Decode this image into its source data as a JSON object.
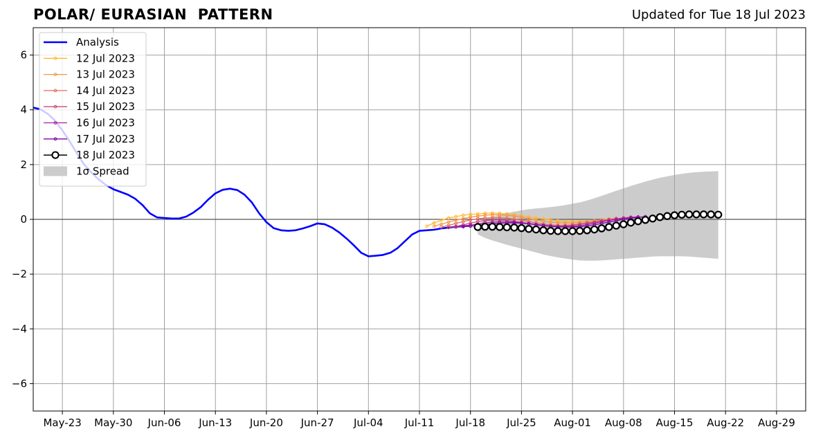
{
  "chart_data": {
    "type": "line",
    "title": "POLAR/ EURASIAN  PATTERN",
    "subtitle": "Updated for Tue 18 Jul 2023",
    "xlabel": "",
    "ylabel": "",
    "x_range": [
      "2023-05-19",
      "2023-09-02"
    ],
    "ylim": [
      -7,
      7
    ],
    "yticks": [
      -6,
      -4,
      -2,
      0,
      2,
      4,
      6
    ],
    "ytick_labels": [
      "−6",
      "−4",
      "−2",
      "0",
      "2",
      "4",
      "6"
    ],
    "xticks": [
      "2023-05-23",
      "2023-05-30",
      "2023-06-06",
      "2023-06-13",
      "2023-06-20",
      "2023-06-27",
      "2023-07-04",
      "2023-07-11",
      "2023-07-18",
      "2023-07-25",
      "2023-08-01",
      "2023-08-08",
      "2023-08-15",
      "2023-08-22",
      "2023-08-29"
    ],
    "xtick_labels": [
      "May-23",
      "May-30",
      "Jun-06",
      "Jun-13",
      "Jun-20",
      "Jun-27",
      "Jul-04",
      "Jul-11",
      "Jul-18",
      "Jul-25",
      "Aug-01",
      "Aug-08",
      "Aug-15",
      "Aug-22",
      "Aug-29"
    ],
    "grid": true,
    "zero_line": true,
    "legend_position": "top-left",
    "colors": {
      "analysis": "#0000ff",
      "12 Jul 2023": "#ffb931",
      "13 Jul 2023": "#f89441",
      "14 Jul 2023": "#e56b5d",
      "15 Jul 2023": "#cb4778",
      "16 Jul 2023": "#a72197",
      "17 Jul 2023": "#7e03a8",
      "18 Jul 2023": "#000000",
      "spread": "#cccccc",
      "grid": "#a0a0a0"
    },
    "series": [
      {
        "name": "Analysis",
        "kind": "analysis",
        "start": "2023-05-19",
        "values": [
          4.08,
          4.02,
          3.85,
          3.6,
          3.25,
          2.85,
          2.4,
          2.0,
          1.7,
          1.45,
          1.25,
          1.1,
          1.0,
          0.9,
          0.75,
          0.52,
          0.22,
          0.07,
          0.05,
          0.03,
          0.03,
          0.1,
          0.25,
          0.45,
          0.72,
          0.95,
          1.08,
          1.12,
          1.07,
          0.9,
          0.62,
          0.22,
          -0.1,
          -0.32,
          -0.4,
          -0.42,
          -0.4,
          -0.33,
          -0.25,
          -0.15,
          -0.18,
          -0.3,
          -0.48,
          -0.7,
          -0.95,
          -1.22,
          -1.35,
          -1.33,
          -1.3,
          -1.22,
          -1.05,
          -0.8,
          -0.55,
          -0.42,
          -0.4,
          -0.38,
          -0.33,
          -0.3,
          -0.27,
          -0.25,
          -0.23
        ]
      },
      {
        "name": "12 Jul 2023",
        "kind": "forecast",
        "start": "2023-07-12",
        "values": [
          -0.25,
          -0.13,
          -0.03,
          0.05,
          0.1,
          0.15,
          0.18,
          0.2,
          0.22,
          0.23,
          0.22,
          0.2,
          0.17,
          0.13,
          0.09,
          0.05,
          0.02,
          -0.02,
          -0.05,
          -0.07,
          -0.08,
          -0.08,
          -0.07,
          -0.05,
          -0.02,
          0.0,
          0.03
        ]
      },
      {
        "name": "13 Jul 2023",
        "kind": "forecast",
        "start": "2023-07-13",
        "values": [
          -0.25,
          -0.18,
          -0.1,
          -0.03,
          0.03,
          0.08,
          0.12,
          0.15,
          0.17,
          0.17,
          0.15,
          0.12,
          0.08,
          0.03,
          -0.02,
          -0.07,
          -0.1,
          -0.12,
          -0.13,
          -0.13,
          -0.11,
          -0.08,
          -0.05,
          -0.02,
          0.01,
          0.04
        ]
      },
      {
        "name": "14 Jul 2023",
        "kind": "forecast",
        "start": "2023-07-14",
        "values": [
          -0.28,
          -0.22,
          -0.15,
          -0.08,
          -0.02,
          0.02,
          0.05,
          0.06,
          0.06,
          0.04,
          0.01,
          -0.03,
          -0.08,
          -0.13,
          -0.17,
          -0.2,
          -0.22,
          -0.22,
          -0.2,
          -0.17,
          -0.13,
          -0.09,
          -0.05,
          -0.01,
          0.02,
          0.05
        ]
      },
      {
        "name": "15 Jul 2023",
        "kind": "forecast",
        "start": "2023-07-15",
        "values": [
          -0.3,
          -0.26,
          -0.2,
          -0.14,
          -0.08,
          -0.04,
          -0.02,
          -0.02,
          -0.04,
          -0.07,
          -0.11,
          -0.15,
          -0.19,
          -0.22,
          -0.24,
          -0.25,
          -0.24,
          -0.22,
          -0.18,
          -0.14,
          -0.1,
          -0.06,
          -0.02,
          0.02,
          0.05,
          0.08
        ]
      },
      {
        "name": "16 Jul 2023",
        "kind": "forecast",
        "start": "2023-07-16",
        "values": [
          -0.28,
          -0.25,
          -0.21,
          -0.17,
          -0.13,
          -0.1,
          -0.09,
          -0.09,
          -0.1,
          -0.13,
          -0.16,
          -0.2,
          -0.23,
          -0.26,
          -0.27,
          -0.27,
          -0.26,
          -0.23,
          -0.19,
          -0.14,
          -0.09,
          -0.04,
          0.0,
          0.04,
          0.07,
          0.09
        ]
      },
      {
        "name": "17 Jul 2023",
        "kind": "forecast",
        "start": "2023-07-17",
        "values": [
          -0.27,
          -0.25,
          -0.22,
          -0.19,
          -0.16,
          -0.14,
          -0.13,
          -0.13,
          -0.14,
          -0.16,
          -0.19,
          -0.22,
          -0.25,
          -0.27,
          -0.28,
          -0.28,
          -0.27,
          -0.24,
          -0.2,
          -0.15,
          -0.1,
          -0.05,
          0.0,
          0.04,
          0.07,
          0.1
        ]
      },
      {
        "name": "18 Jul 2023",
        "kind": "current",
        "start": "2023-07-19",
        "values": [
          -0.28,
          -0.27,
          -0.27,
          -0.28,
          -0.29,
          -0.3,
          -0.32,
          -0.35,
          -0.37,
          -0.4,
          -0.42,
          -0.43,
          -0.43,
          -0.43,
          -0.42,
          -0.4,
          -0.37,
          -0.33,
          -0.28,
          -0.23,
          -0.18,
          -0.12,
          -0.07,
          -0.02,
          0.03,
          0.08,
          0.12,
          0.15,
          0.17,
          0.18,
          0.18,
          0.18,
          0.18,
          0.17
        ]
      }
    ],
    "spread": {
      "name": "1σ Spread",
      "start": "2023-07-19",
      "upper": [
        -0.2,
        0.0,
        0.1,
        0.17,
        0.23,
        0.28,
        0.33,
        0.37,
        0.4,
        0.42,
        0.45,
        0.48,
        0.52,
        0.57,
        0.62,
        0.69,
        0.77,
        0.86,
        0.95,
        1.04,
        1.13,
        1.22,
        1.3,
        1.38,
        1.45,
        1.52,
        1.57,
        1.62,
        1.66,
        1.7,
        1.72,
        1.74,
        1.75,
        1.76
      ],
      "lower": [
        -0.55,
        -0.68,
        -0.77,
        -0.85,
        -0.93,
        -1.0,
        -1.07,
        -1.14,
        -1.21,
        -1.28,
        -1.34,
        -1.39,
        -1.43,
        -1.47,
        -1.5,
        -1.51,
        -1.51,
        -1.5,
        -1.48,
        -1.46,
        -1.44,
        -1.42,
        -1.4,
        -1.38,
        -1.36,
        -1.35,
        -1.35,
        -1.35,
        -1.35,
        -1.36,
        -1.38,
        -1.4,
        -1.42,
        -1.44
      ]
    },
    "legend": [
      "Analysis",
      "12 Jul 2023",
      "13 Jul 2023",
      "14 Jul 2023",
      "15 Jul 2023",
      "16 Jul 2023",
      "17 Jul 2023",
      "18 Jul 2023",
      "1σ Spread"
    ]
  }
}
